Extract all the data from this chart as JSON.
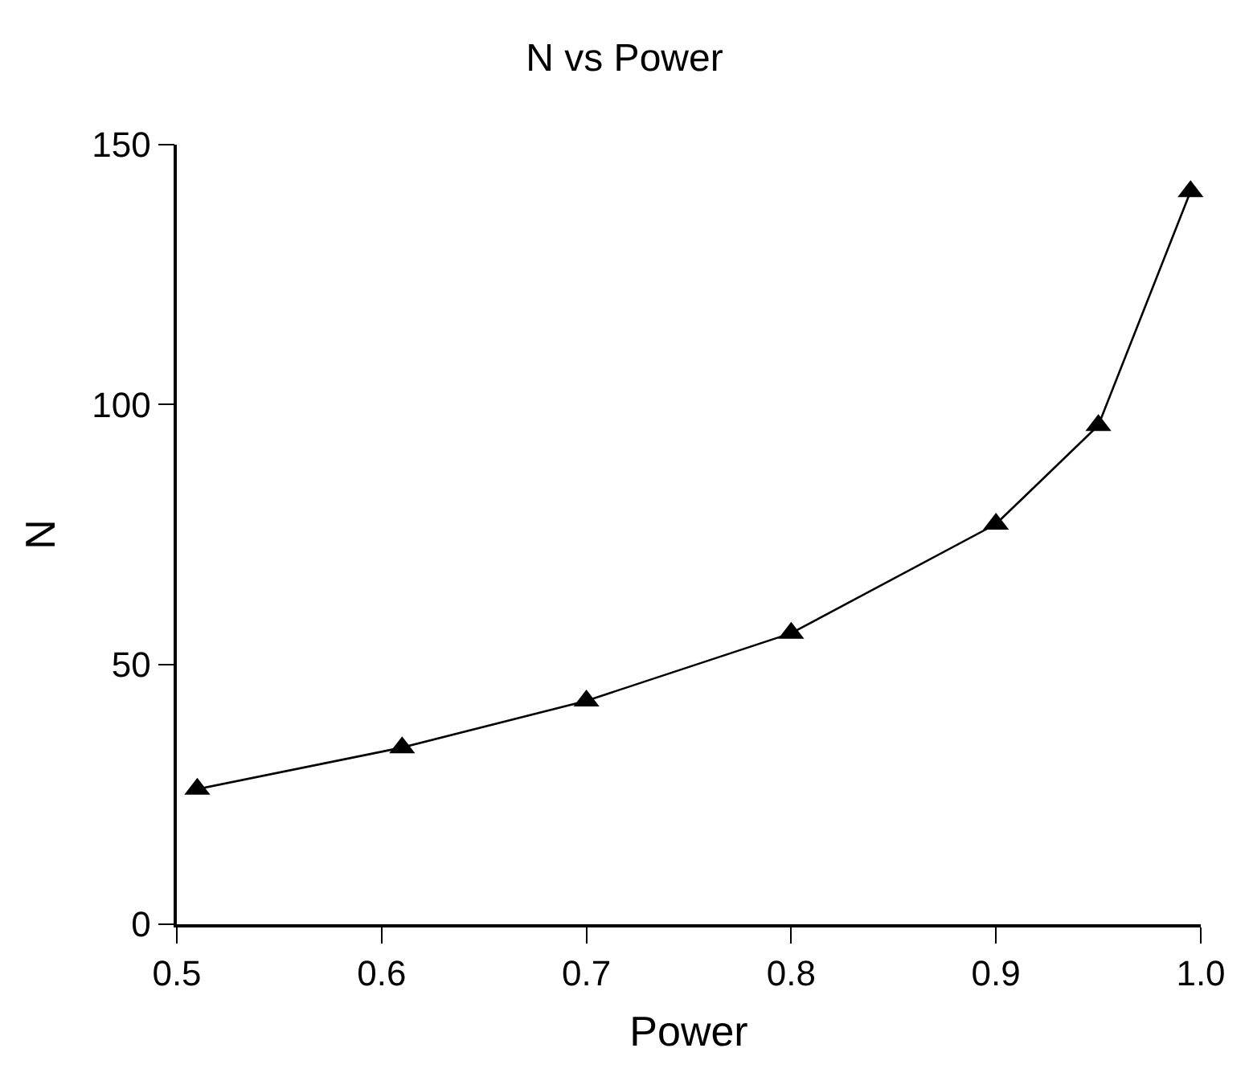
{
  "chart_data": {
    "type": "line",
    "title": "N vs Power",
    "xlabel": "Power",
    "ylabel": "N",
    "x": [
      0.51,
      0.61,
      0.7,
      0.8,
      0.9,
      0.95,
      0.995
    ],
    "series": [
      {
        "color": "#000000",
        "values": [
          26,
          34,
          43,
          56,
          77,
          96,
          141
        ]
      }
    ],
    "xlim": [
      0.5,
      1.0
    ],
    "xticks": [
      0.5,
      0.6,
      0.7,
      0.8,
      0.9,
      {
        "value": 1.0,
        "label": "1.0"
      }
    ],
    "ylim": [
      0,
      150
    ],
    "yticks": [
      0,
      50,
      100,
      150
    ],
    "marker": "triangle",
    "line_style": "solid"
  }
}
